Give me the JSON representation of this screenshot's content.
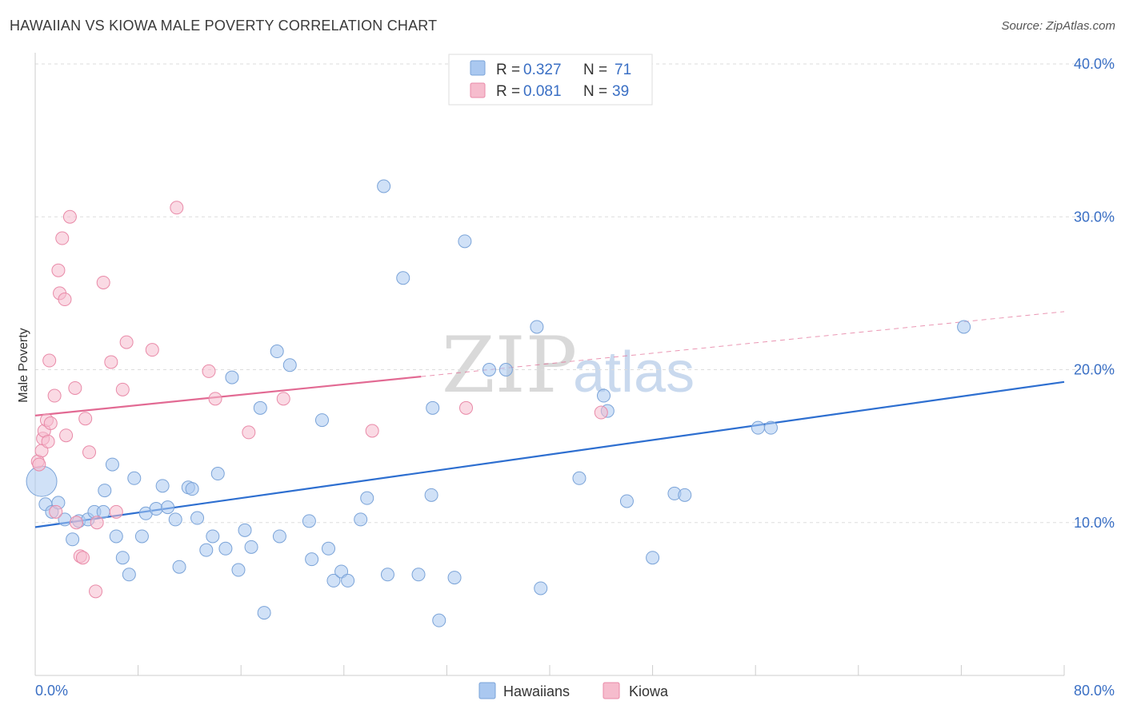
{
  "header": {
    "title": "HAWAIIAN VS KIOWA MALE POVERTY CORRELATION CHART",
    "source": "Source: ZipAtlas.com"
  },
  "watermark": {
    "zip": "ZIP",
    "atlas": "atlas"
  },
  "colors": {
    "hawaiians_fill": "#aac8f0",
    "hawaiians_stroke": "#7aa3d8",
    "hawaiians_line": "#2e6fd0",
    "kiowa_fill": "#f6bccd",
    "kiowa_stroke": "#e98aa8",
    "kiowa_line": "#e26a93",
    "axis_text": "#3a6fc4",
    "grid": "#dddddd"
  },
  "legend": {
    "rows": [
      {
        "r_label": "R = ",
        "r_value": "0.327",
        "n_label": "N = ",
        "n_value": "71"
      },
      {
        "r_label": "R = ",
        "r_value": "0.081",
        "n_label": "N = ",
        "n_value": "39"
      }
    ]
  },
  "bottom_legend": [
    "Hawaiians",
    "Kiowa"
  ],
  "chart_data": {
    "type": "scatter",
    "title": "HAWAIIAN VS KIOWA MALE POVERTY CORRELATION CHART",
    "xlabel": "",
    "ylabel": "Male Poverty",
    "xlim": [
      0,
      80
    ],
    "ylim": [
      0,
      40
    ],
    "x_tick_labels": [
      "0.0%",
      "80.0%"
    ],
    "y_ticks": [
      10,
      20,
      30,
      40
    ],
    "y_tick_labels": [
      "10.0%",
      "20.0%",
      "30.0%",
      "40.0%"
    ],
    "grid": true,
    "legend_position": "top-center",
    "series": [
      {
        "name": "Hawaiians",
        "r": 0.327,
        "n": 71,
        "trend": {
          "x": [
            0,
            80
          ],
          "y": [
            9.7,
            19.2
          ],
          "dashed_from": null
        },
        "points": [
          [
            0.5,
            12.7
          ],
          [
            0.8,
            11.2
          ],
          [
            1.3,
            10.7
          ],
          [
            1.8,
            11.3
          ],
          [
            2.3,
            10.2
          ],
          [
            2.9,
            8.9
          ],
          [
            3.4,
            10.1
          ],
          [
            4.1,
            10.2
          ],
          [
            4.6,
            10.7
          ],
          [
            5.3,
            10.7
          ],
          [
            5.4,
            12.1
          ],
          [
            6.0,
            13.8
          ],
          [
            6.3,
            9.1
          ],
          [
            6.8,
            7.7
          ],
          [
            7.3,
            6.6
          ],
          [
            7.7,
            12.9
          ],
          [
            8.3,
            9.1
          ],
          [
            8.6,
            10.6
          ],
          [
            9.4,
            10.9
          ],
          [
            9.9,
            12.4
          ],
          [
            10.3,
            11.0
          ],
          [
            10.9,
            10.2
          ],
          [
            11.2,
            7.1
          ],
          [
            11.9,
            12.3
          ],
          [
            12.2,
            12.2
          ],
          [
            12.6,
            10.3
          ],
          [
            13.3,
            8.2
          ],
          [
            13.8,
            9.1
          ],
          [
            14.2,
            13.2
          ],
          [
            14.8,
            8.3
          ],
          [
            15.3,
            19.5
          ],
          [
            15.8,
            6.9
          ],
          [
            16.3,
            9.5
          ],
          [
            16.8,
            8.4
          ],
          [
            17.5,
            17.5
          ],
          [
            17.8,
            4.1
          ],
          [
            18.8,
            21.2
          ],
          [
            19.0,
            9.1
          ],
          [
            19.8,
            20.3
          ],
          [
            21.3,
            10.1
          ],
          [
            21.5,
            7.6
          ],
          [
            22.3,
            16.7
          ],
          [
            22.8,
            8.3
          ],
          [
            23.2,
            6.2
          ],
          [
            23.8,
            6.8
          ],
          [
            24.3,
            6.2
          ],
          [
            25.3,
            10.2
          ],
          [
            25.8,
            11.6
          ],
          [
            27.1,
            32.0
          ],
          [
            27.4,
            6.6
          ],
          [
            28.6,
            26.0
          ],
          [
            29.8,
            6.6
          ],
          [
            30.8,
            11.8
          ],
          [
            30.9,
            17.5
          ],
          [
            31.4,
            3.6
          ],
          [
            32.6,
            6.4
          ],
          [
            33.4,
            28.4
          ],
          [
            35.3,
            20.0
          ],
          [
            36.6,
            20.0
          ],
          [
            39.0,
            22.8
          ],
          [
            39.3,
            5.7
          ],
          [
            42.3,
            12.9
          ],
          [
            44.2,
            18.3
          ],
          [
            44.5,
            17.3
          ],
          [
            46.0,
            11.4
          ],
          [
            48.0,
            7.7
          ],
          [
            49.7,
            11.9
          ],
          [
            50.5,
            11.8
          ],
          [
            56.2,
            16.2
          ],
          [
            57.2,
            16.2
          ],
          [
            72.2,
            22.8
          ]
        ]
      },
      {
        "name": "Kiowa",
        "r": 0.081,
        "n": 39,
        "trend": {
          "x": [
            0,
            80
          ],
          "y": [
            17.0,
            23.8
          ],
          "dashed_from": 30
        },
        "points": [
          [
            0.2,
            14.0
          ],
          [
            0.3,
            13.8
          ],
          [
            0.5,
            14.7
          ],
          [
            0.6,
            15.5
          ],
          [
            0.7,
            16.0
          ],
          [
            0.9,
            16.7
          ],
          [
            1.0,
            15.3
          ],
          [
            1.1,
            20.6
          ],
          [
            1.2,
            16.5
          ],
          [
            1.5,
            18.3
          ],
          [
            1.6,
            10.7
          ],
          [
            1.8,
            26.5
          ],
          [
            1.9,
            25.0
          ],
          [
            2.1,
            28.6
          ],
          [
            2.3,
            24.6
          ],
          [
            2.4,
            15.7
          ],
          [
            2.7,
            30.0
          ],
          [
            3.1,
            18.8
          ],
          [
            3.2,
            10.0
          ],
          [
            3.5,
            7.8
          ],
          [
            3.7,
            7.7
          ],
          [
            3.9,
            16.8
          ],
          [
            4.2,
            14.6
          ],
          [
            4.7,
            5.5
          ],
          [
            4.8,
            10.0
          ],
          [
            5.3,
            25.7
          ],
          [
            5.9,
            20.5
          ],
          [
            6.3,
            10.7
          ],
          [
            6.8,
            18.7
          ],
          [
            7.1,
            21.8
          ],
          [
            9.1,
            21.3
          ],
          [
            11.0,
            30.6
          ],
          [
            13.5,
            19.9
          ],
          [
            14.0,
            18.1
          ],
          [
            16.6,
            15.9
          ],
          [
            19.3,
            18.1
          ],
          [
            26.2,
            16.0
          ],
          [
            33.5,
            17.5
          ],
          [
            44.0,
            17.2
          ]
        ]
      }
    ]
  }
}
